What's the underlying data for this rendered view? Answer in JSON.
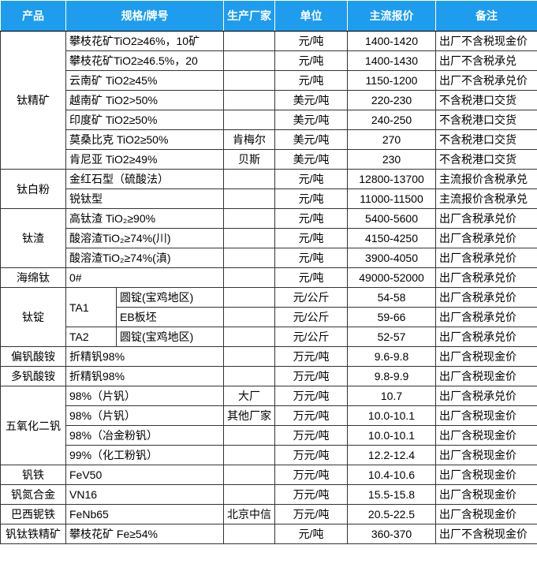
{
  "table": {
    "header": [
      "产品",
      "规格/牌号",
      "生产厂家",
      "单位",
      "主流报价",
      "备注"
    ],
    "groups": [
      {
        "product": "钛精矿",
        "rows": [
          {
            "spec": "攀枝花矿TiO2≥46%，10矿",
            "unit": "元/吨",
            "price": "1400-1420",
            "note": "出厂不含税现金价"
          },
          {
            "spec": "攀枝花矿TiO2≥46.5%，20",
            "unit": "元/吨",
            "price": "1400-1430",
            "note": "出厂不含税承兑"
          },
          {
            "spec": "云南矿 TiO2≥45%",
            "unit": "元/吨",
            "price": "1150-1200",
            "note": "出厂不含税承兑价"
          },
          {
            "spec": "越南矿 TiO2>50%",
            "unit": "美元/吨",
            "price": "220-230",
            "note": "不含税港口交货"
          },
          {
            "spec": "印度矿 TiO2≥50%",
            "unit": "美元/吨",
            "price": "240-250",
            "note": "不含税港口交货"
          },
          {
            "spec": "莫桑比克 TiO2≥50%",
            "maker": "肯梅尔",
            "unit": "美元/吨",
            "price": "270",
            "note": "不含税港口交货"
          },
          {
            "spec": "肯尼亚 TiO2≥49%",
            "maker": "贝斯",
            "unit": "美元/吨",
            "price": "230",
            "note": "不含税港口交货"
          }
        ]
      },
      {
        "product": "钛白粉",
        "rows": [
          {
            "spec": "金红石型（硫酸法）",
            "unit": "元/吨",
            "price": "12800-13700",
            "note": "主流报价含税承兑"
          },
          {
            "spec": "锐钛型",
            "unit": "元/吨",
            "price": "11000-11500",
            "note": "主流报价含税承兑"
          }
        ]
      },
      {
        "product": "钛渣",
        "rows": [
          {
            "spec": "高钛渣 TiO₂≥90%",
            "unit": "元/吨",
            "price": "5400-5600",
            "note": "出厂含税承兑价"
          },
          {
            "spec": "酸溶渣TiO₂≥74%(川)",
            "unit": "元/吨",
            "price": "4150-4250",
            "note": "出厂含税承兑价"
          },
          {
            "spec": "酸溶渣TiO₂≥74%(滇)",
            "unit": "元/吨",
            "price": "3900-4050",
            "note": "出厂含税承兑价"
          }
        ]
      },
      {
        "product": "海绵钛",
        "rows": [
          {
            "spec": "0#",
            "unit": "元/吨",
            "price": "49000-52000",
            "note": "出厂含税承兑价"
          }
        ]
      },
      {
        "product": "钛锭",
        "rows": [
          {
            "grade": "TA1",
            "spec": "圆锭(宝鸡地区)",
            "unit": "元/公斤",
            "price": "54-58",
            "note": "出厂含税承兑价"
          },
          {
            "spec": "EB板坯",
            "unit": "元/公斤",
            "price": "59-66",
            "note": "出厂含税承兑价"
          },
          {
            "grade": "TA2",
            "spec": "圆锭(宝鸡地区)",
            "unit": "元/公斤",
            "price": "52-57",
            "note": "出厂含税承兑价"
          }
        ]
      },
      {
        "product": "偏钒酸铵",
        "rows": [
          {
            "spec": "折精钒98%",
            "unit": "万元/吨",
            "price": "9.6-9.8",
            "note": "出厂含税现金价"
          }
        ]
      },
      {
        "product": "多钒酸铵",
        "rows": [
          {
            "spec": "折精钒98%",
            "unit": "万元/吨",
            "price": "9.8-9.9",
            "note": "出厂含税现金价"
          }
        ]
      },
      {
        "product": "五氧化二钒",
        "rows": [
          {
            "spec": "98%（片钒）",
            "maker": "大厂",
            "unit": "万元/吨",
            "price": "10.7",
            "note": "出厂含税承兑价"
          },
          {
            "spec": "98%（片钒）",
            "maker": "其他厂家",
            "unit": "万元/吨",
            "price": "10.0-10.1",
            "note": "出厂含税现金价"
          },
          {
            "spec": "98%（冶金粉钒）",
            "unit": "万元/吨",
            "price": "10.0-10.1",
            "note": "出厂含税现金价"
          },
          {
            "spec": "99%（化工粉钒）",
            "unit": "万元/吨",
            "price": "12.2-12.4",
            "note": "出厂含税现金价"
          }
        ]
      },
      {
        "product": "钒铁",
        "rows": [
          {
            "spec": "FeV50",
            "unit": "万元/吨",
            "price": "10.4-10.6",
            "note": "出厂含税现金价"
          }
        ]
      },
      {
        "product": "钒氮合金",
        "rows": [
          {
            "spec": "VN16",
            "unit": "万元/吨",
            "price": "15.5-15.8",
            "note": "出厂含税现金价"
          }
        ]
      },
      {
        "product": "巴西铌铁",
        "rows": [
          {
            "spec": "FeNb65",
            "maker": "北京中信",
            "unit": "万元/吨",
            "price": "20.5-22.5",
            "note": "出厂含税现金价"
          }
        ]
      },
      {
        "product": "钒钛铁精矿",
        "rows": [
          {
            "spec": "攀枝花矿 Fe≥54%",
            "unit": "元/吨",
            "price": "360-370",
            "note": "出厂不含税现金价"
          }
        ]
      }
    ]
  }
}
